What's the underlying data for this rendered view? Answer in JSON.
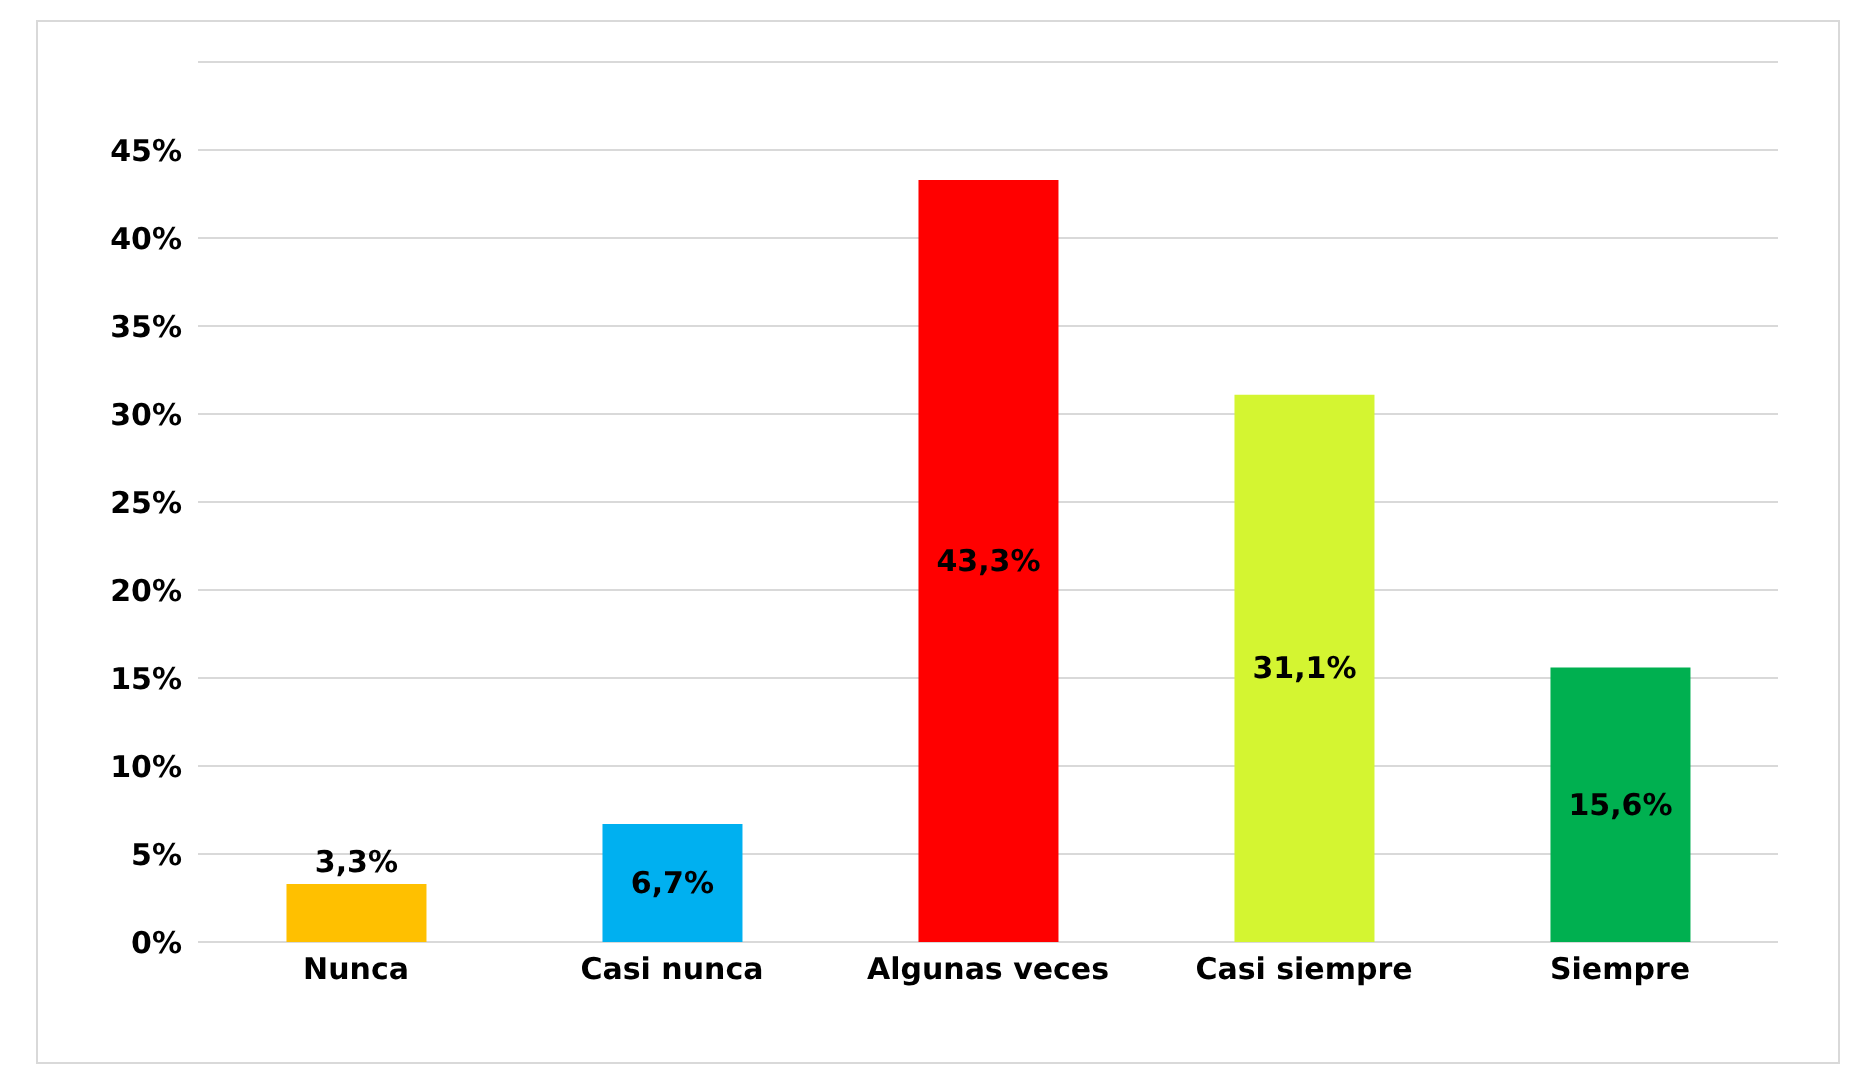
{
  "chart_data": {
    "type": "bar",
    "categories": [
      "Nunca",
      "Casi nunca",
      "Algunas veces",
      "Casi siempre",
      "Siempre"
    ],
    "values": [
      3.3,
      6.7,
      43.3,
      31.1,
      15.6
    ],
    "colors": [
      "#ffc000",
      "#00b0f0",
      "#ff0000",
      "#d4f531",
      "#00b050"
    ],
    "value_labels": [
      "3,3%",
      "6,7%",
      "43,3%",
      "31,1%",
      "15,6%"
    ],
    "ylim": [
      0,
      50
    ],
    "yticks": [
      {
        "value": 0,
        "label": "0%"
      },
      {
        "value": 5,
        "label": "5%"
      },
      {
        "value": 10,
        "label": "10%"
      },
      {
        "value": 15,
        "label": "15%"
      },
      {
        "value": 20,
        "label": "20%"
      },
      {
        "value": 25,
        "label": "25%"
      },
      {
        "value": 30,
        "label": "30%"
      },
      {
        "value": 35,
        "label": "35%"
      },
      {
        "value": 40,
        "label": "40%"
      },
      {
        "value": 45,
        "label": "45%"
      },
      {
        "value": 50,
        "label": null
      }
    ],
    "grid": "y"
  }
}
